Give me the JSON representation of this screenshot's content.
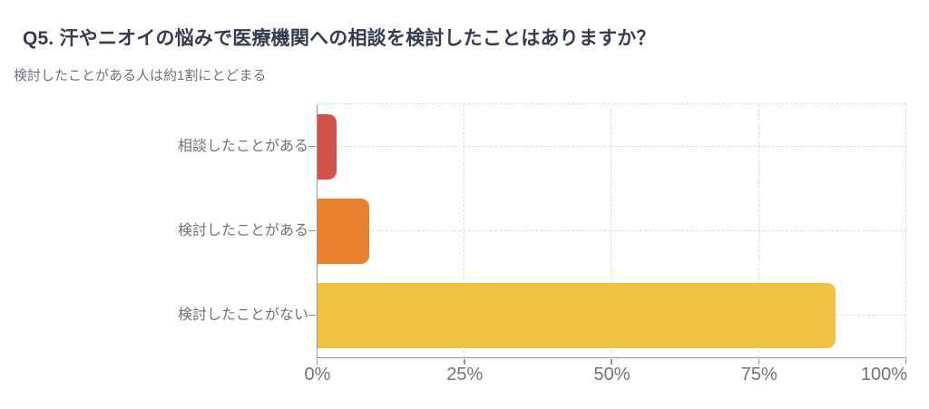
{
  "chart_data": {
    "type": "bar",
    "orientation": "horizontal",
    "title": "Q5. 汗やニオイの悩みで医療機関への相談を検討したことはありますか？",
    "subtitle": "検討したことがある人は約1割にとどまる",
    "categories": [
      "相談したことがある",
      "検討したことがある",
      "検討したことがない"
    ],
    "values": [
      3.3,
      8.9,
      88
    ],
    "bar_colors": [
      "#D3534C",
      "#E8802E",
      "#F0C344"
    ],
    "x_ticks": {
      "labels": [
        "0%",
        "25%",
        "50%",
        "75%",
        "100%"
      ],
      "values": [
        0,
        25,
        50,
        75,
        100
      ]
    },
    "xlim": [
      0,
      100
    ],
    "xlabel": "",
    "ylabel": "",
    "grid": "dashed",
    "legend": "none",
    "colors": {
      "title": "#333D4F",
      "subtitle": "#6A7380",
      "axis": "#969696",
      "gridline": "#DBDBDB",
      "tick_label": "#737373",
      "background": "#FFFFFF"
    }
  }
}
